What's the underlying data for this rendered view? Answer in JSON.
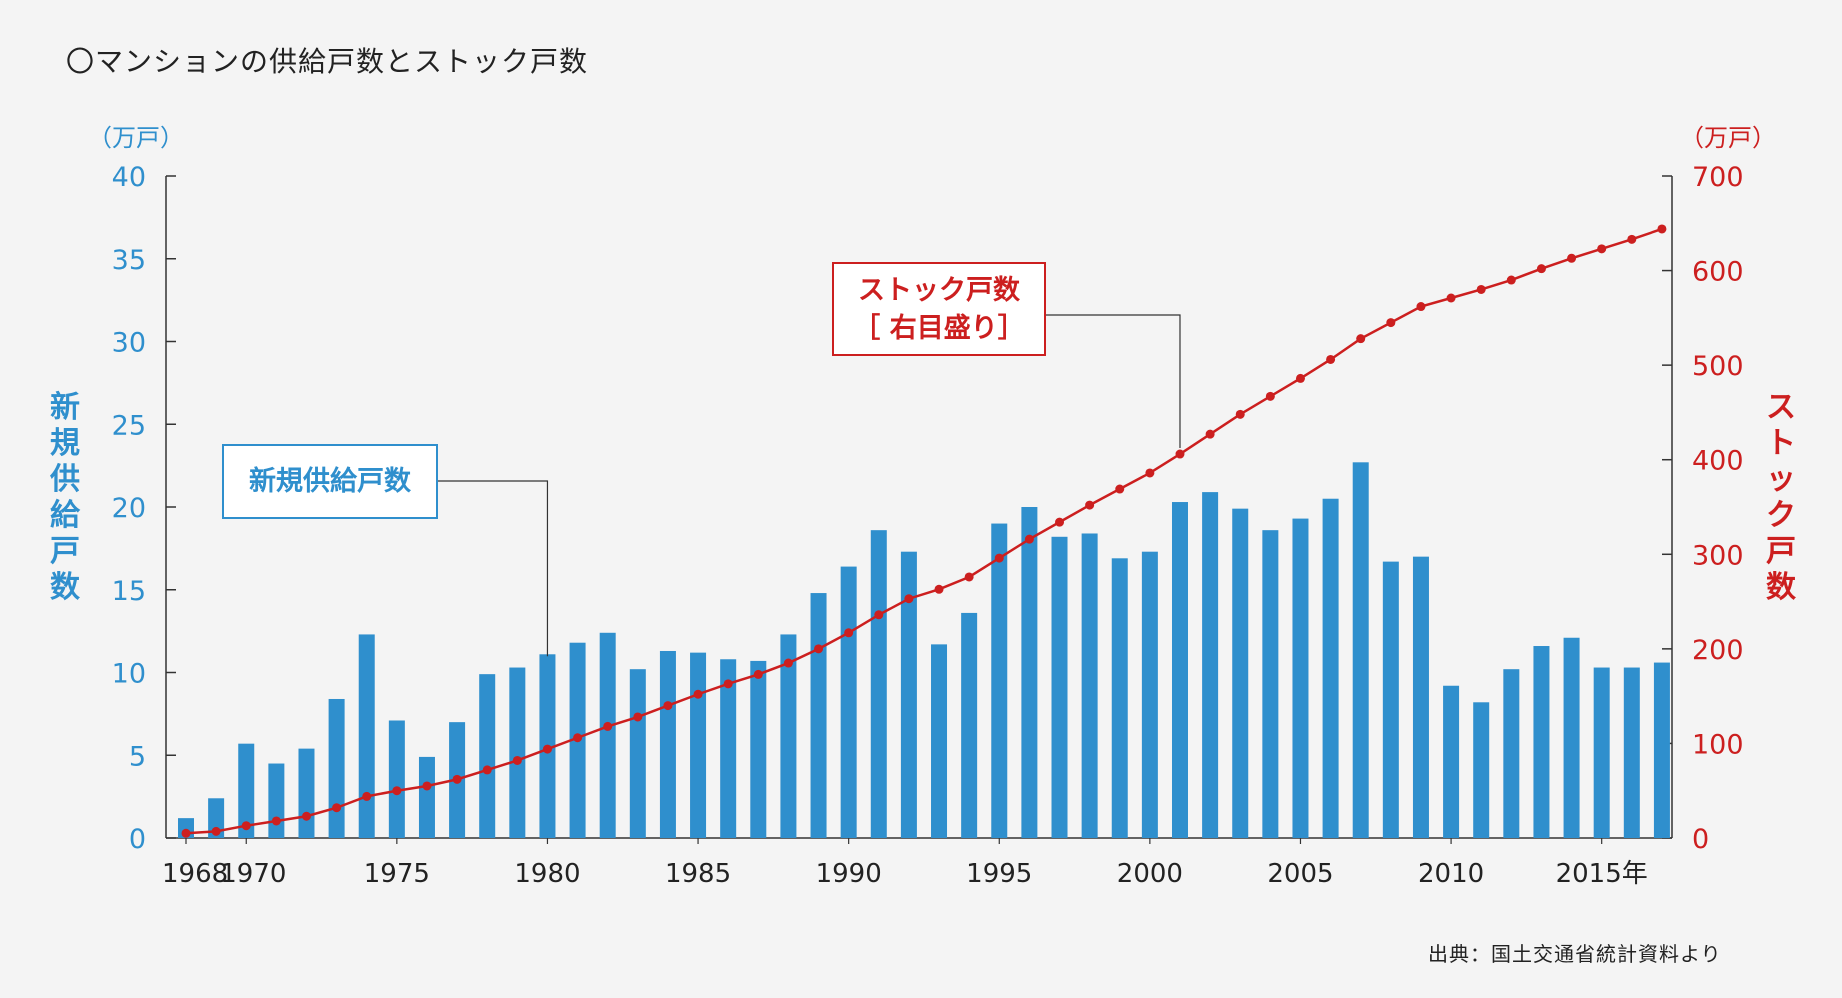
{
  "title": "〇マンションの供給戸数とストック戸数",
  "source": "出典：国土交通省統計資料より",
  "left_axis": {
    "unit": "（万戸）",
    "label": "新規供給戸数",
    "color": "#2f8fcd"
  },
  "right_axis": {
    "unit": "（万戸）",
    "label": "ストック戸数",
    "color": "#cc1f1f"
  },
  "callouts": {
    "bar": "新規供給戸数",
    "line_1": "ストック戸数",
    "line_2": "［ 右目盛り］"
  },
  "chart_data": {
    "type": "bar",
    "x": [
      1968,
      1969,
      1970,
      1971,
      1972,
      1973,
      1974,
      1975,
      1976,
      1977,
      1978,
      1979,
      1980,
      1981,
      1982,
      1983,
      1984,
      1985,
      1986,
      1987,
      1988,
      1989,
      1990,
      1991,
      1992,
      1993,
      1994,
      1995,
      1996,
      1997,
      1998,
      1999,
      2000,
      2001,
      2002,
      2003,
      2004,
      2005,
      2006,
      2007,
      2008,
      2009,
      2010,
      2011,
      2012,
      2013,
      2014,
      2015,
      2016,
      2017
    ],
    "x_tick_labels": [
      {
        "x": 1968,
        "label": "1968"
      },
      {
        "x": 1970,
        "label": "1970"
      },
      {
        "x": 1975,
        "label": "1975"
      },
      {
        "x": 1980,
        "label": "1980"
      },
      {
        "x": 1985,
        "label": "1985"
      },
      {
        "x": 1990,
        "label": "1990"
      },
      {
        "x": 1995,
        "label": "1995"
      },
      {
        "x": 2000,
        "label": "2000"
      },
      {
        "x": 2005,
        "label": "2005"
      },
      {
        "x": 2010,
        "label": "2010"
      },
      {
        "x": 2015,
        "label": "2015年"
      }
    ],
    "series": [
      {
        "name": "新規供給戸数",
        "type": "bar",
        "axis": "left",
        "color": "#2f8fcd",
        "values": [
          1.2,
          2.4,
          5.7,
          4.5,
          5.4,
          8.4,
          12.3,
          7.1,
          4.9,
          7.0,
          9.9,
          10.3,
          11.1,
          11.8,
          12.4,
          10.2,
          11.3,
          11.2,
          10.8,
          10.7,
          12.3,
          14.8,
          16.4,
          18.6,
          17.3,
          11.7,
          13.6,
          19.0,
          20.0,
          18.2,
          18.4,
          16.9,
          17.3,
          20.3,
          20.9,
          19.9,
          18.6,
          19.3,
          20.5,
          22.7,
          16.7,
          17.0,
          9.2,
          8.2,
          10.2,
          11.6,
          12.1,
          10.3,
          10.3,
          10.6
        ]
      },
      {
        "name": "ストック戸数",
        "type": "line",
        "axis": "right",
        "color": "#cc1f1f",
        "values": [
          5,
          7,
          13,
          18,
          23,
          32,
          44,
          50,
          55,
          62,
          72,
          82,
          94,
          106,
          118,
          128,
          140,
          152,
          163,
          173,
          185,
          200,
          217,
          236,
          253,
          263,
          276,
          296,
          316,
          334,
          352,
          369,
          386,
          406,
          427,
          448,
          467,
          486,
          506,
          528,
          545,
          562,
          571,
          580,
          590,
          602,
          613,
          623,
          633,
          644
        ]
      }
    ],
    "ylim_left": [
      0,
      40
    ],
    "yticks_left": [
      0,
      5,
      10,
      15,
      20,
      25,
      30,
      35,
      40
    ],
    "ylim_right": [
      0,
      700
    ],
    "yticks_right": [
      0,
      100,
      200,
      300,
      400,
      500,
      600,
      700
    ]
  }
}
